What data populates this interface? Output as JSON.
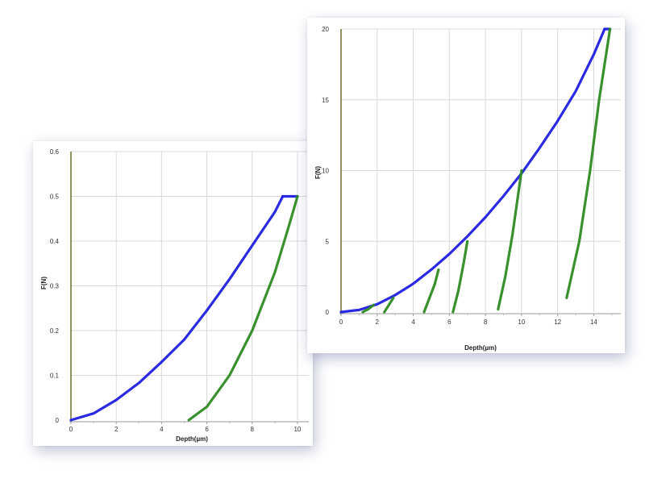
{
  "colors": {
    "loading": "#1f1fe0",
    "unloading": "#2e8b23",
    "grid": "#d8d8d8",
    "y_axis": "#6e6e2a"
  },
  "chart_data": [
    {
      "type": "line",
      "xlabel": "Depth(µm)",
      "ylabel": "F(N)",
      "xlim": [
        0,
        10.5
      ],
      "ylim": [
        0,
        0.6
      ],
      "x_ticks": [
        0,
        2,
        4,
        6,
        8,
        10
      ],
      "y_ticks": [
        0,
        0.1,
        0.2,
        0.3,
        0.4,
        0.5,
        0.6
      ],
      "grid": true,
      "series": [
        {
          "role": "loading",
          "points": [
            [
              0,
              0
            ],
            [
              1,
              0.015
            ],
            [
              2,
              0.045
            ],
            [
              3,
              0.083
            ],
            [
              4,
              0.13
            ],
            [
              5,
              0.18
            ],
            [
              6,
              0.245
            ],
            [
              7,
              0.315
            ],
            [
              8,
              0.39
            ],
            [
              9,
              0.465
            ],
            [
              9.35,
              0.5
            ]
          ]
        },
        {
          "role": "loading",
          "points": [
            [
              9.35,
              0.5
            ],
            [
              10,
              0.5
            ]
          ]
        },
        {
          "role": "unloading",
          "points": [
            [
              5.2,
              0
            ],
            [
              6,
              0.03
            ],
            [
              7,
              0.1
            ],
            [
              8,
              0.2
            ],
            [
              9,
              0.33
            ],
            [
              9.6,
              0.43
            ],
            [
              10,
              0.5
            ]
          ]
        }
      ]
    },
    {
      "type": "line",
      "xlabel": "Depth(µm)",
      "ylabel": "F(N)",
      "xlim": [
        0,
        15.5
      ],
      "ylim": [
        0,
        20
      ],
      "x_ticks": [
        0,
        2,
        4,
        6,
        8,
        10,
        12,
        14
      ],
      "y_ticks": [
        0,
        5,
        10,
        15,
        20
      ],
      "grid": true,
      "series": [
        {
          "role": "loading",
          "points": [
            [
              0,
              0
            ],
            [
              1,
              0.15
            ],
            [
              2,
              0.55
            ],
            [
              3,
              1.2
            ],
            [
              4,
              2.0
            ],
            [
              5,
              3.0
            ],
            [
              6,
              4.1
            ],
            [
              7,
              5.35
            ],
            [
              8,
              6.7
            ],
            [
              9,
              8.2
            ],
            [
              10,
              9.8
            ],
            [
              11,
              11.6
            ],
            [
              12,
              13.5
            ],
            [
              13,
              15.6
            ],
            [
              14,
              18.2
            ],
            [
              14.6,
              20
            ]
          ]
        },
        {
          "role": "loading",
          "points": [
            [
              14.6,
              20
            ],
            [
              14.9,
              20
            ]
          ]
        },
        {
          "role": "unloading",
          "points": [
            [
              1.2,
              0
            ],
            [
              1.5,
              0.2
            ],
            [
              1.8,
              0.5
            ]
          ]
        },
        {
          "role": "unloading",
          "points": [
            [
              2.4,
              0
            ],
            [
              2.6,
              0.4
            ],
            [
              2.9,
              1.0
            ]
          ]
        },
        {
          "role": "unloading",
          "points": [
            [
              4.6,
              0
            ],
            [
              4.9,
              1.0
            ],
            [
              5.2,
              2.0
            ],
            [
              5.4,
              3.0
            ]
          ]
        },
        {
          "role": "unloading",
          "points": [
            [
              6.2,
              0
            ],
            [
              6.5,
              1.5
            ],
            [
              6.8,
              3.5
            ],
            [
              7.0,
              5.0
            ]
          ]
        },
        {
          "role": "unloading",
          "points": [
            [
              8.7,
              0.2
            ],
            [
              9.1,
              2.5
            ],
            [
              9.5,
              5.5
            ],
            [
              10.0,
              10.0
            ]
          ]
        },
        {
          "role": "unloading",
          "points": [
            [
              12.5,
              1.0
            ],
            [
              13.2,
              5.0
            ],
            [
              13.8,
              10.0
            ],
            [
              14.3,
              15.0
            ],
            [
              14.9,
              20.0
            ]
          ]
        }
      ]
    }
  ]
}
